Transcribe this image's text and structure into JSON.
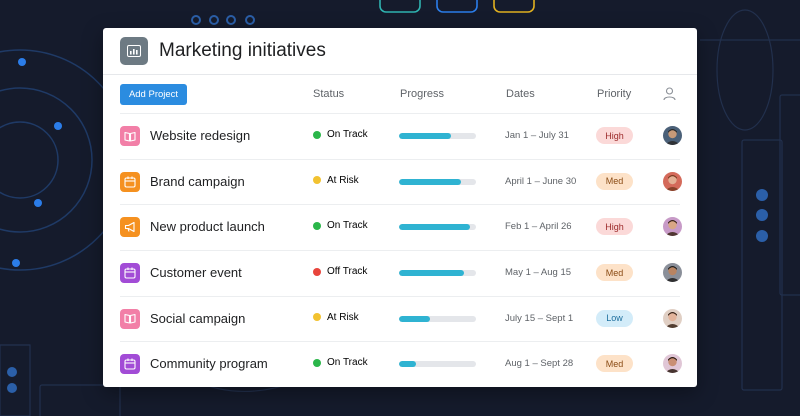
{
  "header": {
    "title": "Marketing initiatives"
  },
  "toolbar": {
    "add_project_label": "Add Project"
  },
  "columns": {
    "status": "Status",
    "progress": "Progress",
    "dates": "Dates",
    "priority": "Priority"
  },
  "colors": {
    "accent": "#2b8ce0",
    "progress": "#2fb3d2",
    "on_track": "#2bb64a",
    "at_risk": "#f2c230",
    "off_track": "#e8453c",
    "high_bg": "#fbd9d8",
    "med_bg": "#fde2c8",
    "low_bg": "#d3ecf9"
  },
  "rows": [
    {
      "name": "Website redesign",
      "icon": "book-icon",
      "icon_color": "#f27fa7",
      "status": "On Track",
      "status_key": "on_track",
      "progress": 0.67,
      "dates": "Jan 1 – July 31",
      "priority": "High",
      "priority_key": "high",
      "avatar_color": "#4a6078",
      "skin": "#c89a78",
      "hair": "#2a2a2a"
    },
    {
      "name": "Brand campaign",
      "icon": "calendar-icon",
      "icon_color": "#f59120",
      "status": "At Risk",
      "status_key": "at_risk",
      "progress": 0.8,
      "dates": "April 1 – June 30",
      "priority": "Med",
      "priority_key": "med",
      "avatar_color": "#d46a5a",
      "skin": "#e3b095",
      "hair": "#7a3b22"
    },
    {
      "name": "New product launch",
      "icon": "megaphone-icon",
      "icon_color": "#f59120",
      "status": "On Track",
      "status_key": "on_track",
      "progress": 0.92,
      "dates": "Feb 1 – April 26",
      "priority": "High",
      "priority_key": "high",
      "avatar_color": "#c79ac7",
      "skin": "#d9a684",
      "hair": "#3b2418"
    },
    {
      "name": "Customer event",
      "icon": "calendar-icon",
      "icon_color": "#a24cd6",
      "status": "Off Track",
      "status_key": "off_track",
      "progress": 0.84,
      "dates": "May 1 – Aug 15",
      "priority": "Med",
      "priority_key": "med",
      "avatar_color": "#8a8f99",
      "skin": "#b88462",
      "hair": "#1f1f1f"
    },
    {
      "name": "Social campaign",
      "icon": "book-icon",
      "icon_color": "#f27fa7",
      "status": "At Risk",
      "status_key": "at_risk",
      "progress": 0.4,
      "dates": "July 15 – Sept 1",
      "priority": "Low",
      "priority_key": "low",
      "avatar_color": "#e0cfc4",
      "skin": "#e2b39a",
      "hair": "#3a2418"
    },
    {
      "name": "Community program",
      "icon": "calendar-icon",
      "icon_color": "#a24cd6",
      "status": "On Track",
      "status_key": "on_track",
      "progress": 0.22,
      "dates": "Aug 1 – Sept 28",
      "priority": "Med",
      "priority_key": "med",
      "avatar_color": "#e0c6d6",
      "skin": "#c98f74",
      "hair": "#2b1a12"
    }
  ]
}
